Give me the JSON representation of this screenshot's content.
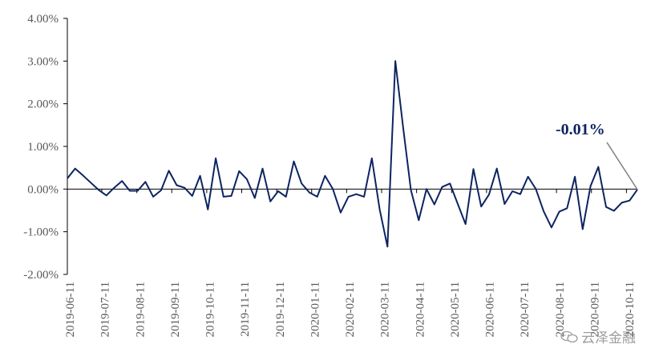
{
  "chart_data": {
    "type": "line",
    "title": "",
    "xlabel": "",
    "ylabel": "",
    "ylim": [
      -0.02,
      0.04
    ],
    "y_ticks": [
      -0.02,
      -0.01,
      0.0,
      0.01,
      0.02,
      0.03,
      0.04
    ],
    "y_tick_labels": [
      "-2.00%",
      "-1.00%",
      "0.00%",
      "1.00%",
      "2.00%",
      "3.00%",
      "4.00%"
    ],
    "x_tick_labels": [
      "2019-06-11",
      "2019-07-11",
      "2019-08-11",
      "2019-09-11",
      "2019-10-11",
      "2019-11-11",
      "2019-12-11",
      "2020-01-11",
      "2020-02-11",
      "2020-03-11",
      "2020-04-11",
      "2020-05-11",
      "2020-06-11",
      "2020-07-11",
      "2020-08-11",
      "2020-09-11",
      "2020-10-11"
    ],
    "grid": false,
    "line_color": "#0d2460",
    "series": [
      {
        "values": [
          0.0025,
          0.0048,
          0.0032,
          0.0015,
          -0.0002,
          -0.0015,
          0.0003,
          0.0019,
          -0.0004,
          -0.0004,
          0.0017,
          -0.0018,
          -0.0003,
          0.0043,
          0.0009,
          0.0003,
          -0.0016,
          0.0031,
          -0.0048,
          0.0072,
          -0.0018,
          -0.0016,
          0.0042,
          0.0023,
          -0.0021,
          0.0048,
          -0.0029,
          -0.0005,
          -0.0018,
          0.0065,
          0.0013,
          -0.0008,
          -0.0018,
          0.0031,
          0.0,
          -0.0055,
          -0.0018,
          -0.0012,
          -0.0018,
          0.0072,
          -0.0048,
          -0.0135,
          0.03,
          0.0145,
          -0.0002,
          -0.0073,
          0.0,
          -0.0036,
          0.0005,
          0.0013,
          -0.0035,
          -0.0082,
          0.0047,
          -0.0041,
          -0.0013,
          0.0048,
          -0.0035,
          -0.0005,
          -0.0012,
          0.0029,
          0.0,
          -0.0052,
          -0.009,
          -0.0053,
          -0.0045,
          0.0029,
          -0.0094,
          0.0007,
          0.0052,
          -0.0042,
          -0.0051,
          -0.0032,
          -0.0027,
          -0.0001
        ]
      }
    ],
    "annotation": {
      "text": "-0.01%",
      "value": -0.0001
    }
  },
  "watermark": {
    "text": "云泽金融",
    "icon": "wechat-icon"
  }
}
